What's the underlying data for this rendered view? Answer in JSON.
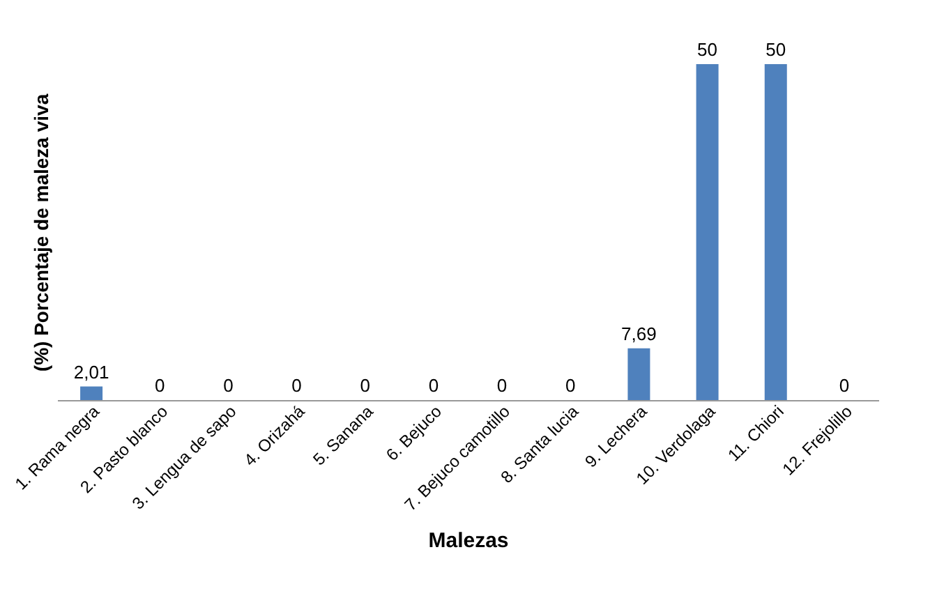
{
  "chart_data": {
    "type": "bar",
    "xlabel": "Malezas",
    "ylabel": "(%)  Porcentaje  de  maleza  viva",
    "categories": [
      "1. Rama negra",
      "2. Pasto blanco",
      "3. Lengua de sapo",
      "4. Orizahá",
      "5. Sanana",
      "6. Bejuco",
      "7. Bejuco camotillo",
      "8. Santa lucia",
      "9. Lechera",
      "10. Verdolaga",
      "11. Chiori",
      "12. Frejolillo"
    ],
    "values": [
      2.01,
      0,
      0,
      0,
      0,
      0,
      0,
      0,
      7.69,
      50,
      50,
      0
    ],
    "value_labels": [
      "2,01",
      "0",
      "0",
      "0",
      "0",
      "0",
      "0",
      "0",
      "7,69",
      "50",
      "50",
      "0"
    ],
    "color": "#4f81bd",
    "grid": false
  }
}
